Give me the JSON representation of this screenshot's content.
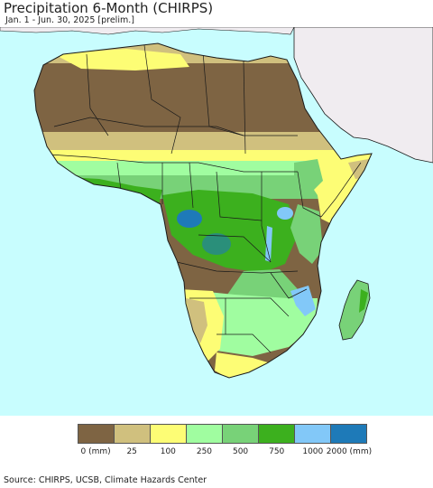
{
  "header": {
    "title": "Precipitation 6-Month (CHIRPS)",
    "subtitle": "Jan. 1 - Jun. 30, 2025 [prelim.]"
  },
  "map": {
    "ocean_color": "#c8fdfe",
    "non_data_land_color": "#f0ecf0",
    "border_color": "#1a1a1a"
  },
  "legend": {
    "colors": [
      "#7e6443",
      "#d0c07e",
      "#fdfd75",
      "#a0fda0",
      "#78d278",
      "#3cb01e",
      "#82c8f8",
      "#1e7ab8"
    ],
    "labels": [
      "0 (mm)",
      "25",
      "100",
      "250",
      "500",
      "750",
      "1000",
      "2000 (mm)"
    ]
  },
  "footer": {
    "source": "Source: CHIRPS, UCSB, Climate Hazards Center"
  }
}
